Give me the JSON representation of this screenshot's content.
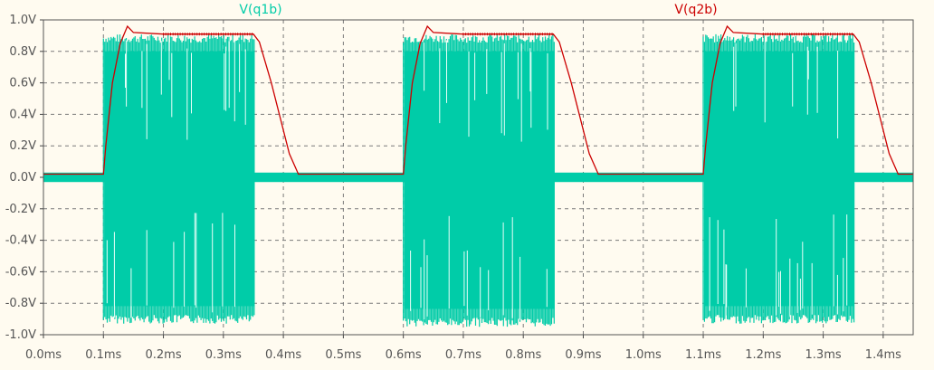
{
  "chart_data": {
    "type": "line",
    "xlabel": "",
    "ylabel": "",
    "xlim": [
      0.0,
      1.45
    ],
    "ylim": [
      -1.0,
      1.0
    ],
    "x_ticks": [
      "0.0ms",
      "0.1ms",
      "0.2ms",
      "0.3ms",
      "0.4ms",
      "0.5ms",
      "0.6ms",
      "0.7ms",
      "0.8ms",
      "0.9ms",
      "1.0ms",
      "1.1ms",
      "1.2ms",
      "1.3ms",
      "1.4ms"
    ],
    "y_ticks": [
      "1.0V",
      "0.8V",
      "0.6V",
      "0.4V",
      "0.2V",
      "0.0V",
      "-0.2V",
      "-0.4V",
      "-0.6V",
      "-0.8V",
      "-1.0V"
    ],
    "grid": true,
    "series": [
      {
        "name": "V(q1b)",
        "color": "#00cca8",
        "style": "oscillating",
        "bursts": [
          {
            "start_ms": 0.1,
            "end_ms": 0.352,
            "max_v": 0.91,
            "min_v": -0.93
          },
          {
            "start_ms": 0.6,
            "end_ms": 0.852,
            "max_v": 0.91,
            "min_v": -0.95
          },
          {
            "start_ms": 1.1,
            "end_ms": 1.352,
            "max_v": 0.91,
            "min_v": -0.93
          }
        ],
        "idle_band_v": [
          -0.03,
          0.03
        ]
      },
      {
        "name": "V(q2b)",
        "color": "#cc0000",
        "points": [
          [
            0.0,
            0.02
          ],
          [
            0.1,
            0.02
          ],
          [
            0.104,
            0.2
          ],
          [
            0.115,
            0.6
          ],
          [
            0.128,
            0.85
          ],
          [
            0.14,
            0.96
          ],
          [
            0.15,
            0.92
          ],
          [
            0.2,
            0.91
          ],
          [
            0.35,
            0.91
          ],
          [
            0.36,
            0.86
          ],
          [
            0.38,
            0.6
          ],
          [
            0.41,
            0.15
          ],
          [
            0.425,
            0.02
          ],
          [
            0.6,
            0.02
          ],
          [
            0.604,
            0.2
          ],
          [
            0.615,
            0.6
          ],
          [
            0.628,
            0.85
          ],
          [
            0.64,
            0.96
          ],
          [
            0.65,
            0.92
          ],
          [
            0.7,
            0.91
          ],
          [
            0.85,
            0.91
          ],
          [
            0.86,
            0.86
          ],
          [
            0.88,
            0.6
          ],
          [
            0.91,
            0.15
          ],
          [
            0.925,
            0.02
          ],
          [
            1.1,
            0.02
          ],
          [
            1.104,
            0.2
          ],
          [
            1.115,
            0.6
          ],
          [
            1.128,
            0.85
          ],
          [
            1.14,
            0.96
          ],
          [
            1.15,
            0.92
          ],
          [
            1.2,
            0.91
          ],
          [
            1.35,
            0.91
          ],
          [
            1.36,
            0.86
          ],
          [
            1.38,
            0.6
          ],
          [
            1.41,
            0.15
          ],
          [
            1.425,
            0.02
          ],
          [
            1.45,
            0.02
          ]
        ]
      }
    ]
  }
}
